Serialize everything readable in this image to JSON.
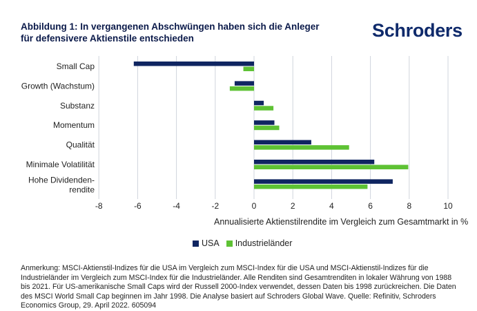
{
  "header": {
    "title_line1": "Abbildung 1: In vergangenen Abschwüngen haben sich die Anleger",
    "title_line2": "für defensivere Aktienstile entschieden",
    "logo": "Schroders"
  },
  "colors": {
    "usa": "#0f2561",
    "industrial": "#5ec234",
    "grid": "#cfd4dc"
  },
  "chart_data": {
    "type": "bar",
    "orientation": "horizontal",
    "categories": [
      "Small Cap",
      "Growth (Wachstum)",
      "Substanz",
      "Momentum",
      "Qualität",
      "Minimale Volatilität",
      "Hohe Dividenden-\nrendite"
    ],
    "category_lines": [
      [
        "Small Cap"
      ],
      [
        "Growth (Wachstum)"
      ],
      [
        "Substanz"
      ],
      [
        "Momentum"
      ],
      [
        "Qualität"
      ],
      [
        "Minimale Volatilität"
      ],
      [
        "Hohe Dividenden-",
        "rendite"
      ]
    ],
    "series": [
      {
        "name": "USA",
        "values": [
          -6.2,
          -1.0,
          0.5,
          1.05,
          2.95,
          6.2,
          7.15
        ]
      },
      {
        "name": "Industrieländer",
        "values": [
          -0.55,
          -1.25,
          1.0,
          1.3,
          4.9,
          7.95,
          5.85
        ]
      }
    ],
    "xlim": [
      -8,
      10
    ],
    "xticks": [
      -8,
      -6,
      -4,
      -2,
      0,
      2,
      4,
      6,
      8,
      10
    ],
    "xlabel": "Annualisierte Aktienstilrendite im Vergleich zum Gesamtmarkt in %",
    "grid": "vertical",
    "legend_position": "bottom"
  },
  "legend": {
    "usa": "USA",
    "industrial": "Industrieländer"
  },
  "note": "Anmerkung: MSCI-Aktienstil-Indizes für die USA im Vergleich zum MSCI-Index für die USA und MSCI-Aktienstil-Indizes für die Industrieländer im Vergleich zum MSCI-Index für die Industrieländer. Alle Renditen sind Gesamtrenditen in lokaler Währung von 1988 bis 2021. Für US-amerikanische Small Caps wird der Russell 2000-Index verwendet, dessen Daten bis 1998 zurückreichen. Die Daten des MSCI World Small Cap beginnen im Jahr 1998. Die Analyse basiert auf Schroders Global Wave. Quelle: Refinitiv, Schroders Economics Group, 29. April 2022. 605094"
}
